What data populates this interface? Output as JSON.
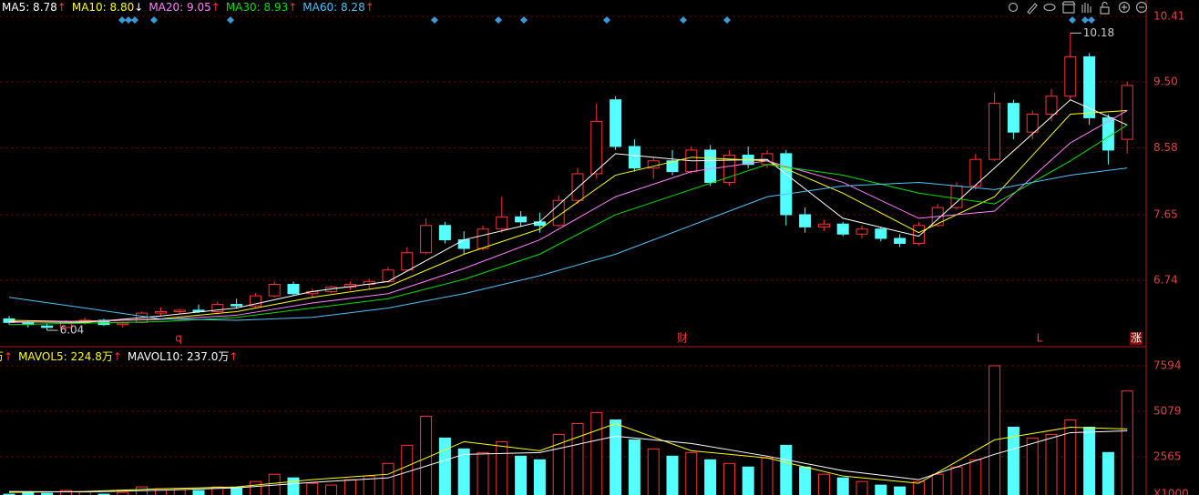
{
  "chart_data": {
    "type": "candlestick",
    "ma_legend": [
      {
        "text": "MA5: 8.78",
        "arrow": "↑",
        "color": "#ffffff",
        "arrow_color": "#ff3232"
      },
      {
        "text": "MA10: 8.80",
        "arrow": "↓",
        "color": "#ffff00",
        "arrow_color": "#ffffff"
      },
      {
        "text": "MA20: 9.05",
        "arrow": "↑",
        "color": "#ff80ff",
        "arrow_color": "#ff3232"
      },
      {
        "text": "MA30: 8.93",
        "arrow": "↑",
        "color": "#00e000",
        "arrow_color": "#ff3232"
      },
      {
        "text": "MA60: 8.28",
        "arrow": "↑",
        "color": "#4fc3f7",
        "arrow_color": "#ff3232"
      }
    ],
    "vol_legend": [
      {
        "text": "万",
        "arrow": "↑",
        "color": "#ffff00",
        "arrow_color": "#ff3232"
      },
      {
        "text": "MAVOL5: 224.8万",
        "arrow": "↑",
        "color": "#ffff00",
        "arrow_color": "#ff3232"
      },
      {
        "text": "MAVOL10: 237.0万",
        "arrow": "↑",
        "color": "#ffffff",
        "arrow_color": "#ff3232"
      }
    ],
    "up_color": "#ff3232",
    "down_color": "#54ffff",
    "ylim": [
      5.85,
      10.64
    ],
    "yticks": [
      10.41,
      {
        "value": 9.5,
        "label": "9.50"
      },
      8.58,
      7.65,
      6.74
    ],
    "candles": [
      [
        6.2,
        6.24,
        6.12,
        6.15
      ],
      [
        6.15,
        6.18,
        6.08,
        6.12
      ],
      [
        6.1,
        6.14,
        6.04,
        6.08
      ],
      [
        6.08,
        6.18,
        6.06,
        6.16
      ],
      [
        6.16,
        6.22,
        6.12,
        6.18
      ],
      [
        6.18,
        6.2,
        6.1,
        6.12
      ],
      [
        6.12,
        6.16,
        6.08,
        6.14
      ],
      [
        6.15,
        6.3,
        6.14,
        6.28
      ],
      [
        6.28,
        6.36,
        6.24,
        6.3
      ],
      [
        6.3,
        6.34,
        6.26,
        6.32
      ],
      [
        6.32,
        6.4,
        6.28,
        6.3
      ],
      [
        6.3,
        6.44,
        6.28,
        6.4
      ],
      [
        6.4,
        6.48,
        6.34,
        6.38
      ],
      [
        6.38,
        6.56,
        6.36,
        6.52
      ],
      [
        6.52,
        6.72,
        6.5,
        6.68
      ],
      [
        6.68,
        6.72,
        6.52,
        6.55
      ],
      [
        6.55,
        6.62,
        6.5,
        6.58
      ],
      [
        6.58,
        6.66,
        6.56,
        6.64
      ],
      [
        6.64,
        6.72,
        6.6,
        6.68
      ],
      [
        6.68,
        6.76,
        6.62,
        6.72
      ],
      [
        6.72,
        6.92,
        6.7,
        6.88
      ],
      [
        6.88,
        7.2,
        6.86,
        7.12
      ],
      [
        7.12,
        7.6,
        7.1,
        7.5
      ],
      [
        7.5,
        7.55,
        7.25,
        7.3
      ],
      [
        7.3,
        7.42,
        7.1,
        7.18
      ],
      [
        7.18,
        7.5,
        7.15,
        7.45
      ],
      [
        7.45,
        7.9,
        7.4,
        7.62
      ],
      [
        7.62,
        7.7,
        7.48,
        7.55
      ],
      [
        7.55,
        7.68,
        7.4,
        7.5
      ],
      [
        7.5,
        7.92,
        7.48,
        7.85
      ],
      [
        7.85,
        8.3,
        7.8,
        8.22
      ],
      [
        8.22,
        9.2,
        8.15,
        8.95
      ],
      [
        9.25,
        9.3,
        8.55,
        8.6
      ],
      [
        8.6,
        8.7,
        8.25,
        8.3
      ],
      [
        8.3,
        8.45,
        8.15,
        8.4
      ],
      [
        8.4,
        8.55,
        8.2,
        8.25
      ],
      [
        8.25,
        8.6,
        8.22,
        8.55
      ],
      [
        8.55,
        8.62,
        8.05,
        8.1
      ],
      [
        8.1,
        8.55,
        8.05,
        8.48
      ],
      [
        8.48,
        8.6,
        8.3,
        8.35
      ],
      [
        8.35,
        8.55,
        8.3,
        8.5
      ],
      [
        8.5,
        8.55,
        7.5,
        7.65
      ],
      [
        7.65,
        7.75,
        7.4,
        7.48
      ],
      [
        7.48,
        7.58,
        7.42,
        7.52
      ],
      [
        7.52,
        7.55,
        7.35,
        7.38
      ],
      [
        7.38,
        7.5,
        7.32,
        7.45
      ],
      [
        7.45,
        7.48,
        7.28,
        7.32
      ],
      [
        7.32,
        7.38,
        7.2,
        7.25
      ],
      [
        7.25,
        7.55,
        7.22,
        7.5
      ],
      [
        7.5,
        7.8,
        7.48,
        7.75
      ],
      [
        7.75,
        8.1,
        7.72,
        8.05
      ],
      [
        8.05,
        8.5,
        8.0,
        8.42
      ],
      [
        8.42,
        9.35,
        8.4,
        9.2
      ],
      [
        9.2,
        9.25,
        8.7,
        8.8
      ],
      [
        8.8,
        9.1,
        8.7,
        9.05
      ],
      [
        9.05,
        9.4,
        8.95,
        9.3
      ],
      [
        9.3,
        10.18,
        9.25,
        9.85
      ],
      [
        9.85,
        9.9,
        8.9,
        9.0
      ],
      [
        9.0,
        9.05,
        8.35,
        8.55
      ],
      [
        8.7,
        9.5,
        8.5,
        9.45
      ]
    ],
    "ma_x": [
      0,
      4,
      8,
      12,
      16,
      20,
      24,
      28,
      32,
      36,
      40,
      44,
      48,
      52,
      56,
      59
    ],
    "series": [
      {
        "name": "MA5",
        "color": "#ffffff",
        "values": [
          6.16,
          6.15,
          6.24,
          6.35,
          6.58,
          6.72,
          7.3,
          7.55,
          8.5,
          8.4,
          8.42,
          7.6,
          7.35,
          8.3,
          9.25,
          8.9
        ]
      },
      {
        "name": "MA10",
        "color": "#ffff00",
        "values": [
          6.18,
          6.16,
          6.2,
          6.3,
          6.5,
          6.65,
          7.1,
          7.45,
          8.2,
          8.45,
          8.4,
          7.95,
          7.4,
          7.9,
          9.05,
          9.1
        ]
      },
      {
        "name": "MA20",
        "color": "#ff80ff",
        "values": [
          6.15,
          6.17,
          6.19,
          6.25,
          6.42,
          6.55,
          6.9,
          7.3,
          7.9,
          8.25,
          8.4,
          8.1,
          7.6,
          7.7,
          8.65,
          9.1
        ]
      },
      {
        "name": "MA30",
        "color": "#00e000",
        "values": [
          6.12,
          6.14,
          6.16,
          6.22,
          6.35,
          6.48,
          6.75,
          7.1,
          7.65,
          8.0,
          8.35,
          8.2,
          7.95,
          7.8,
          8.4,
          8.9
        ]
      },
      {
        "name": "MA60",
        "color": "#4fc3f7",
        "values": [
          6.5,
          6.35,
          6.2,
          6.18,
          6.22,
          6.35,
          6.55,
          6.8,
          7.1,
          7.5,
          7.9,
          8.05,
          8.1,
          8.0,
          8.2,
          8.3
        ]
      }
    ],
    "annotations": [
      {
        "value": 6.04,
        "index": 2
      },
      {
        "value": 10.18,
        "index": 56
      }
    ],
    "vol_ylim": [
      453,
      8449
    ],
    "vol_yticks": [
      7594,
      5079,
      2565
    ],
    "vol_unit": "X1000",
    "volumes": [
      500,
      600,
      550,
      700,
      650,
      500,
      600,
      900,
      800,
      750,
      700,
      900,
      850,
      1200,
      1600,
      1400,
      1100,
      1000,
      1300,
      1500,
      2200,
      3200,
      4800,
      3600,
      3000,
      2800,
      3400,
      2600,
      2400,
      3800,
      4400,
      5000,
      4600,
      3500,
      3000,
      2600,
      2800,
      2400,
      2200,
      2000,
      2500,
      3200,
      2000,
      1600,
      1400,
      1200,
      1000,
      900,
      1200,
      1600,
      2000,
      2400,
      7600,
      4200,
      3600,
      3800,
      4600,
      4200,
      2800,
      6200
    ],
    "vol_series": [
      {
        "name": "MAVOL5",
        "color": "#ffff00",
        "values": [
          600,
          650,
          800,
          900,
          1300,
          1600,
          3400,
          2900,
          4400,
          2900,
          2500,
          1500,
          1100,
          3500,
          4200,
          4100
        ]
      },
      {
        "name": "MAVOL10",
        "color": "#ffffff",
        "values": [
          650,
          620,
          720,
          850,
          1150,
          1400,
          2700,
          2800,
          3700,
          3300,
          2600,
          1800,
          1300,
          2700,
          3900,
          4000
        ]
      }
    ],
    "markers": [
      "q",
      "财",
      "L",
      "涨"
    ]
  }
}
